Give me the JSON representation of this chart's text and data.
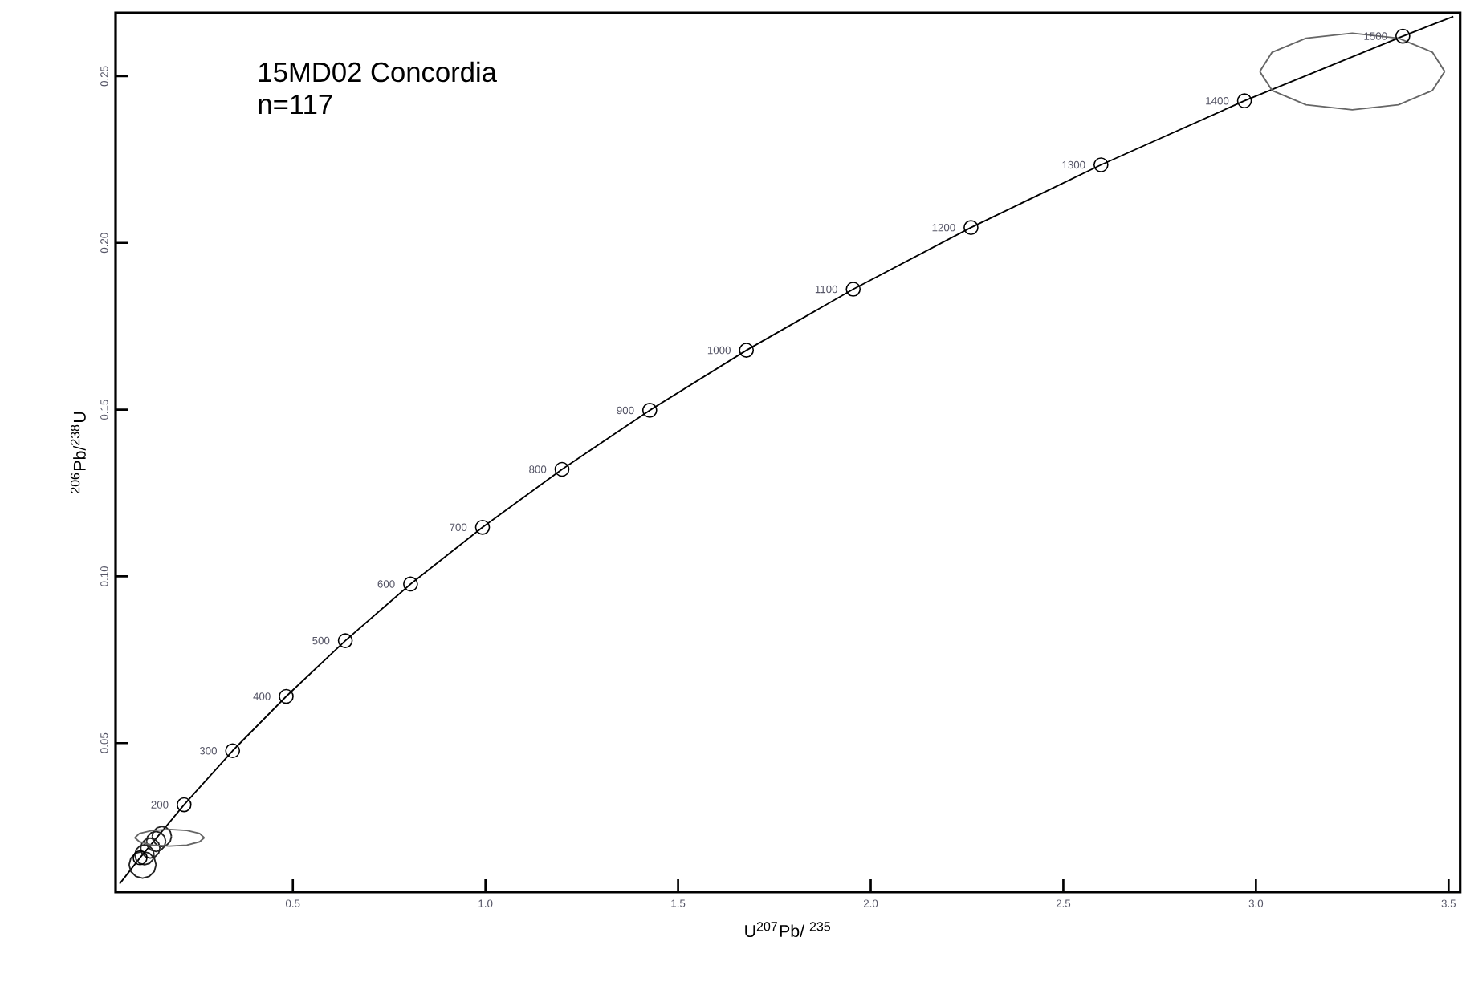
{
  "chart_data": {
    "type": "line",
    "title": "15MD02 Concordia",
    "subtitle": "n=117",
    "xlabel": "U$^{207}$Pb/ $^{235}$",
    "ylabel": "$^{206}$Pb/$^{238}$U",
    "xlim": [
      0.04,
      3.53
    ],
    "ylim": [
      0.0053,
      0.269
    ],
    "xticks": [
      0.5,
      {
        "value": 1.0,
        "label": "1.0"
      },
      1.5,
      {
        "value": 2.0,
        "label": "2.0"
      },
      2.5,
      {
        "value": 3.0,
        "label": "3.0"
      },
      3.5
    ],
    "yticks": [
      0.05,
      {
        "value": 0.1,
        "label": "0.10"
      },
      0.15,
      {
        "value": 0.2,
        "label": "0.20"
      },
      0.25
    ],
    "series": [
      {
        "color": "#000000",
        "marker": "none",
        "x": [
          0.0505,
          0.1035,
          0.2177,
          0.3437,
          0.4828,
          0.6362,
          0.8056,
          0.9924,
          1.1987,
          1.4264,
          1.6774,
          1.9546,
          2.2603,
          2.5977,
          2.9702,
          3.3813,
          3.5123
        ],
        "values": [
          0.0078,
          0.0156,
          0.0315,
          0.0477,
          0.064,
          0.0807,
          0.0977,
          0.1147,
          0.1321,
          0.1498,
          0.1678,
          0.1861,
          0.2046,
          0.2234,
          0.2426,
          0.262,
          0.2679
        ]
      },
      {
        "type": "scatter",
        "color": "#000000",
        "marker": "circle",
        "x": [
          0.1035,
          0.2177,
          0.3437,
          0.4828,
          0.6362,
          0.8056,
          0.9924,
          1.1987,
          1.4264,
          1.6774,
          1.9546,
          2.2603,
          2.5977,
          2.9702,
          3.3813
        ],
        "values": [
          0.0156,
          0.0315,
          0.0477,
          0.064,
          0.0807,
          0.0977,
          0.1147,
          0.1321,
          0.1498,
          0.1678,
          0.1861,
          0.2046,
          0.2234,
          0.2426,
          0.262
        ]
      },
      {
        "color": "#222222",
        "marker": "none",
        "x": [
          0.09,
          0.0933,
          0.1025,
          0.115,
          0.1275,
          0.1367,
          0.14
        ],
        "values": [
          0.0165,
          0.018,
          0.0191,
          0.0195,
          0.0191,
          0.018,
          0.0165
        ]
      },
      {
        "color": "#222222",
        "marker": "none",
        "x": [
          0.09,
          0.0933,
          0.1025,
          0.115,
          0.1275,
          0.1367,
          0.14
        ],
        "values": [
          0.0165,
          0.015,
          0.0139,
          0.0135,
          0.0139,
          0.015,
          0.0165
        ]
      },
      {
        "color": "#222222",
        "marker": "none",
        "x": [
          0.105,
          0.1083,
          0.1175,
          0.13,
          0.1425,
          0.1517,
          0.155
        ],
        "values": [
          0.0185,
          0.02,
          0.0211,
          0.0215,
          0.0211,
          0.02,
          0.0185
        ]
      },
      {
        "color": "#222222",
        "marker": "none",
        "x": [
          0.105,
          0.1083,
          0.1175,
          0.13,
          0.1425,
          0.1517,
          0.155
        ],
        "values": [
          0.0185,
          0.017,
          0.0159,
          0.0155,
          0.0159,
          0.017,
          0.0185
        ]
      },
      {
        "color": "#222222",
        "marker": "none",
        "x": [
          0.12,
          0.1233,
          0.1325,
          0.145,
          0.1575,
          0.1667,
          0.17
        ],
        "values": [
          0.0205,
          0.022,
          0.0231,
          0.0235,
          0.0231,
          0.022,
          0.0205
        ]
      },
      {
        "color": "#222222",
        "marker": "none",
        "x": [
          0.12,
          0.1233,
          0.1325,
          0.145,
          0.1575,
          0.1667,
          0.17
        ],
        "values": [
          0.0205,
          0.019,
          0.0179,
          0.0175,
          0.0179,
          0.019,
          0.0205
        ]
      },
      {
        "color": "#222222",
        "marker": "none",
        "x": [
          0.135,
          0.1383,
          0.1475,
          0.16,
          0.1725,
          0.1817,
          0.185
        ],
        "values": [
          0.022,
          0.0235,
          0.0246,
          0.025,
          0.0246,
          0.0235,
          0.022
        ]
      },
      {
        "color": "#222222",
        "marker": "none",
        "x": [
          0.135,
          0.1383,
          0.1475,
          0.16,
          0.1725,
          0.1817,
          0.185
        ],
        "values": [
          0.022,
          0.0205,
          0.0194,
          0.019,
          0.0194,
          0.0205,
          0.022
        ]
      },
      {
        "color": "#222222",
        "marker": "none",
        "x": [
          0.075,
          0.0797,
          0.0925,
          0.11,
          0.1275,
          0.1403,
          0.145
        ],
        "values": [
          0.0135,
          0.0155,
          0.017,
          0.0175,
          0.017,
          0.0155,
          0.0135
        ]
      },
      {
        "color": "#222222",
        "marker": "none",
        "x": [
          0.075,
          0.0797,
          0.0925,
          0.11,
          0.1275,
          0.1403,
          0.145
        ],
        "values": [
          0.0135,
          0.0115,
          0.01,
          0.0095,
          0.01,
          0.0115,
          0.0135
        ]
      },
      {
        "color": "#666666",
        "marker": "none",
        "x": [
          0.09,
          0.102,
          0.135,
          0.18,
          0.225,
          0.258,
          0.27
        ],
        "values": [
          0.0216,
          0.0229,
          0.0238,
          0.0241,
          0.0238,
          0.0229,
          0.0216
        ]
      },
      {
        "color": "#666666",
        "marker": "none",
        "x": [
          0.09,
          0.102,
          0.135,
          0.18,
          0.225,
          0.258,
          0.27
        ],
        "values": [
          0.0216,
          0.0204,
          0.0194,
          0.0191,
          0.0194,
          0.0204,
          0.0216
        ]
      },
      {
        "color": "#666666",
        "marker": "none",
        "x": [
          3.01,
          3.042,
          3.13,
          3.25,
          3.37,
          3.458,
          3.49
        ],
        "values": [
          0.2514,
          0.2572,
          0.2614,
          0.2629,
          0.2614,
          0.2572,
          0.2514
        ]
      },
      {
        "color": "#666666",
        "marker": "none",
        "x": [
          3.01,
          3.042,
          3.13,
          3.25,
          3.37,
          3.458,
          3.49
        ],
        "values": [
          0.2514,
          0.2457,
          0.2414,
          0.2399,
          0.2414,
          0.2457,
          0.2514
        ]
      }
    ],
    "annotations": [
      {
        "text": "200",
        "x": 0.2177,
        "y": 0.0315
      },
      {
        "text": "300",
        "x": 0.3437,
        "y": 0.0477
      },
      {
        "text": "400",
        "x": 0.4828,
        "y": 0.064
      },
      {
        "text": "500",
        "x": 0.6362,
        "y": 0.0807
      },
      {
        "text": "600",
        "x": 0.8056,
        "y": 0.0977
      },
      {
        "text": "700",
        "x": 0.9924,
        "y": 0.1147
      },
      {
        "text": "800",
        "x": 1.1987,
        "y": 0.1321
      },
      {
        "text": "900",
        "x": 1.4264,
        "y": 0.1498
      },
      {
        "text": "1000",
        "x": 1.6774,
        "y": 0.1678
      },
      {
        "text": "1100",
        "x": 1.9546,
        "y": 0.1861
      },
      {
        "text": "1200",
        "x": 2.2603,
        "y": 0.2046
      },
      {
        "text": "1300",
        "x": 2.5977,
        "y": 0.2234
      },
      {
        "text": "1400",
        "x": 2.9702,
        "y": 0.2426
      },
      {
        "text": "1500",
        "x": 3.3813,
        "y": 0.262
      }
    ]
  }
}
